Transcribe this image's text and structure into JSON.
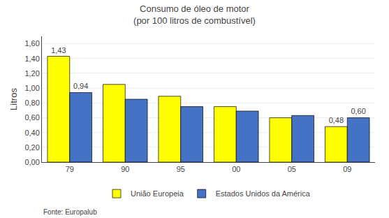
{
  "chart_data": {
    "type": "bar",
    "title": "Consumo de óleo de motor",
    "subtitle": "(por 100 litros de combustível)",
    "ylabel": "Litros",
    "categories": [
      "79",
      "90",
      "95",
      "00",
      "05",
      "09"
    ],
    "series": [
      {
        "name": "União Europeia",
        "color": "#ffff00",
        "values": [
          1.43,
          1.05,
          0.89,
          0.75,
          0.6,
          0.48
        ],
        "value_labels": [
          "1,43",
          null,
          null,
          null,
          null,
          "0,48"
        ]
      },
      {
        "name": "Estados Unidos da América",
        "color": "#4472c4",
        "values": [
          0.94,
          0.85,
          0.75,
          0.69,
          0.63,
          0.6
        ],
        "value_labels": [
          "0,94",
          null,
          null,
          null,
          null,
          "0,60"
        ]
      }
    ],
    "ylim": [
      0,
      1.7
    ],
    "yticks": [
      {
        "value": 0.0,
        "label": "0,00"
      },
      {
        "value": 0.2,
        "label": "0,20"
      },
      {
        "value": 0.4,
        "label": "0,40"
      },
      {
        "value": 0.6,
        "label": "0,60"
      },
      {
        "value": 0.8,
        "label": "0,80"
      },
      {
        "value": 1.0,
        "label": "1,00"
      },
      {
        "value": 1.2,
        "label": "1,20"
      },
      {
        "value": 1.4,
        "label": "1,40"
      },
      {
        "value": 1.6,
        "label": "1,60"
      }
    ],
    "grid": true,
    "legend": "bottom",
    "source": "Fonte: Europalub"
  }
}
